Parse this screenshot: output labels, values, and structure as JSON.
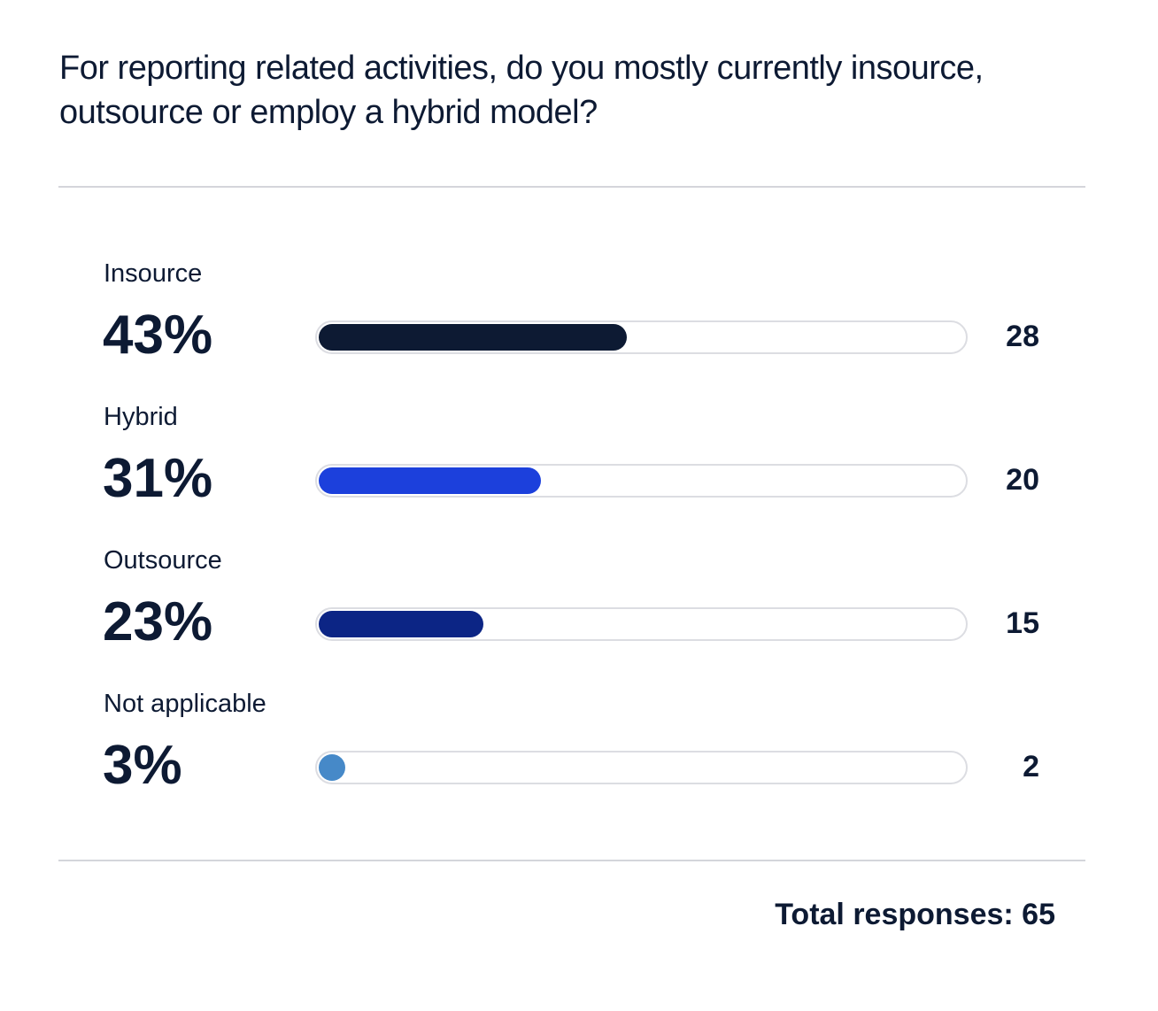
{
  "chart_data": {
    "type": "bar",
    "orientation": "horizontal",
    "title": "For reporting related activities, do you mostly currently insource, outsource or employ a hybrid model?",
    "categories": [
      "Insource",
      "Hybrid",
      "Outsource",
      "Not applicable"
    ],
    "percent_labels": [
      "43%",
      "31%",
      "23%",
      "3%"
    ],
    "percentages": [
      43,
      31,
      23,
      3
    ],
    "counts": [
      "28",
      "20",
      "15",
      "2"
    ],
    "colors": [
      "#0d1a33",
      "#1c40dc",
      "#0c2585",
      "#4689c8"
    ],
    "total_label": "Total responses: 65"
  }
}
